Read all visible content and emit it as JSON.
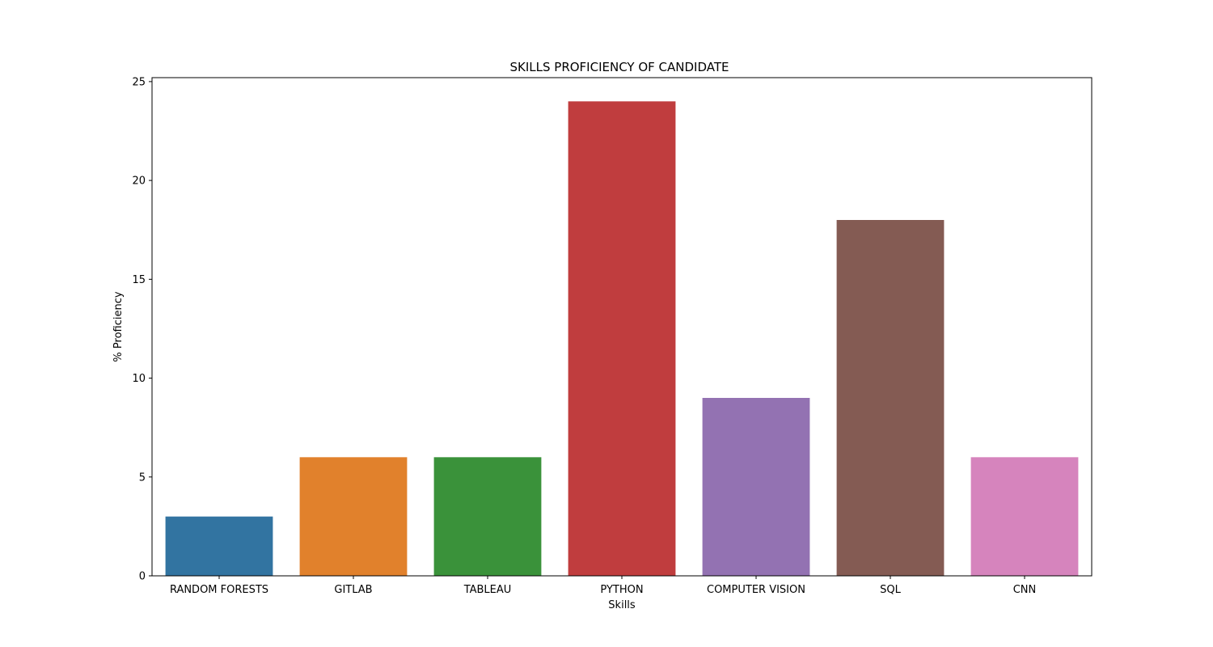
{
  "chart_data": {
    "type": "bar",
    "title": "SKILLS PROFICIENCY OF CANDIDATE",
    "xlabel": "Skills",
    "ylabel": "% Proficiency",
    "categories": [
      "RANDOM FORESTS",
      "GITLAB",
      "TABLEAU",
      "PYTHON",
      "COMPUTER VISION",
      "SQL",
      "CNN"
    ],
    "values": [
      3,
      6,
      6,
      24,
      9,
      18,
      6
    ],
    "colors": [
      "#3274a1",
      "#e1812c",
      "#3a923a",
      "#c03d3e",
      "#9372b2",
      "#845b53",
      "#d684bd"
    ],
    "yticks": [
      0,
      5,
      10,
      15,
      20,
      25
    ],
    "ylim": [
      0,
      25.2
    ],
    "grid": false,
    "legend": "none"
  }
}
